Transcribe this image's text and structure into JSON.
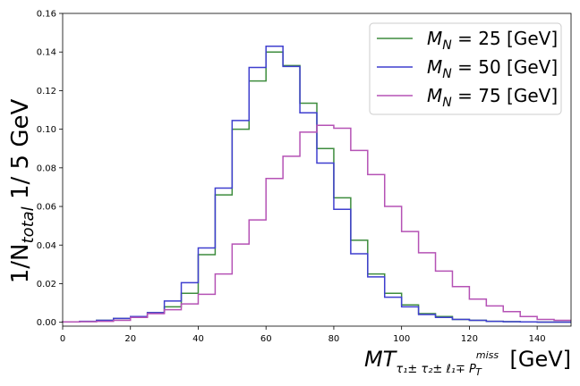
{
  "chart_data": {
    "type": "line",
    "style": "step-histogram",
    "bin_edges": [
      0,
      5,
      10,
      15,
      20,
      25,
      30,
      35,
      40,
      45,
      50,
      55,
      60,
      65,
      70,
      75,
      80,
      85,
      90,
      95,
      100,
      105,
      110,
      115,
      120,
      125,
      130,
      135,
      140,
      145,
      150
    ],
    "xlim": [
      0,
      150
    ],
    "ylim": [
      -0.002,
      0.16
    ],
    "xticks": [
      0,
      20,
      40,
      60,
      80,
      100,
      120,
      140
    ],
    "xtick_labels": [
      "0",
      "20",
      "40",
      "60",
      "80",
      "100",
      "120",
      "140"
    ],
    "yticks": [
      0.0,
      0.02,
      0.04,
      0.06,
      0.08,
      0.1,
      0.12,
      0.14,
      0.16
    ],
    "ytick_labels": [
      "0.00",
      "0.02",
      "0.04",
      "0.06",
      "0.08",
      "0.10",
      "0.12",
      "0.14",
      "0.16"
    ],
    "ylabel": {
      "prefix": "1/N",
      "sub": "total",
      "suffix": " 1/ 5 GeV"
    },
    "xlabel": {
      "main": "MT",
      "sub": "τ₁± τ₂± ℓ₁∓ P",
      "sup": "miss",
      "sub2": "T",
      "unit": " [GeV]"
    },
    "grid": false,
    "legend_position": "top-right",
    "series": [
      {
        "label_main": "M",
        "label_sub": "N",
        "label_rest": " = 25 [GeV]",
        "color": "#3d8c3d",
        "values": [
          0.0002,
          0.0004,
          0.001,
          0.002,
          0.003,
          0.005,
          0.008,
          0.015,
          0.035,
          0.066,
          0.1,
          0.125,
          0.14,
          0.133,
          0.1135,
          0.09,
          0.0645,
          0.0425,
          0.025,
          0.015,
          0.009,
          0.0045,
          0.003,
          0.0015,
          0.001,
          0.0005,
          0.0003,
          0.0002,
          0.0001,
          0.0001
        ]
      },
      {
        "label_main": "M",
        "label_sub": "N",
        "label_rest": " = 50 [GeV]",
        "color": "#3f3fcf",
        "values": [
          0.0002,
          0.0005,
          0.001,
          0.002,
          0.003,
          0.005,
          0.011,
          0.0205,
          0.0385,
          0.0695,
          0.1045,
          0.132,
          0.143,
          0.1325,
          0.1085,
          0.0825,
          0.0585,
          0.0355,
          0.0235,
          0.013,
          0.008,
          0.004,
          0.0025,
          0.0015,
          0.001,
          0.0005,
          0.0003,
          0.0002,
          0.0001,
          0.0001
        ]
      },
      {
        "label_main": "M",
        "label_sub": "N",
        "label_rest": " = 75 [GeV]",
        "color": "#b552b5",
        "values": [
          0.0002,
          0.0003,
          0.0005,
          0.001,
          0.0025,
          0.0045,
          0.0065,
          0.0095,
          0.0145,
          0.025,
          0.0405,
          0.053,
          0.0745,
          0.086,
          0.0985,
          0.102,
          0.1005,
          0.089,
          0.0765,
          0.06,
          0.047,
          0.036,
          0.0265,
          0.0185,
          0.012,
          0.0085,
          0.0055,
          0.003,
          0.0015,
          0.001
        ]
      }
    ]
  }
}
